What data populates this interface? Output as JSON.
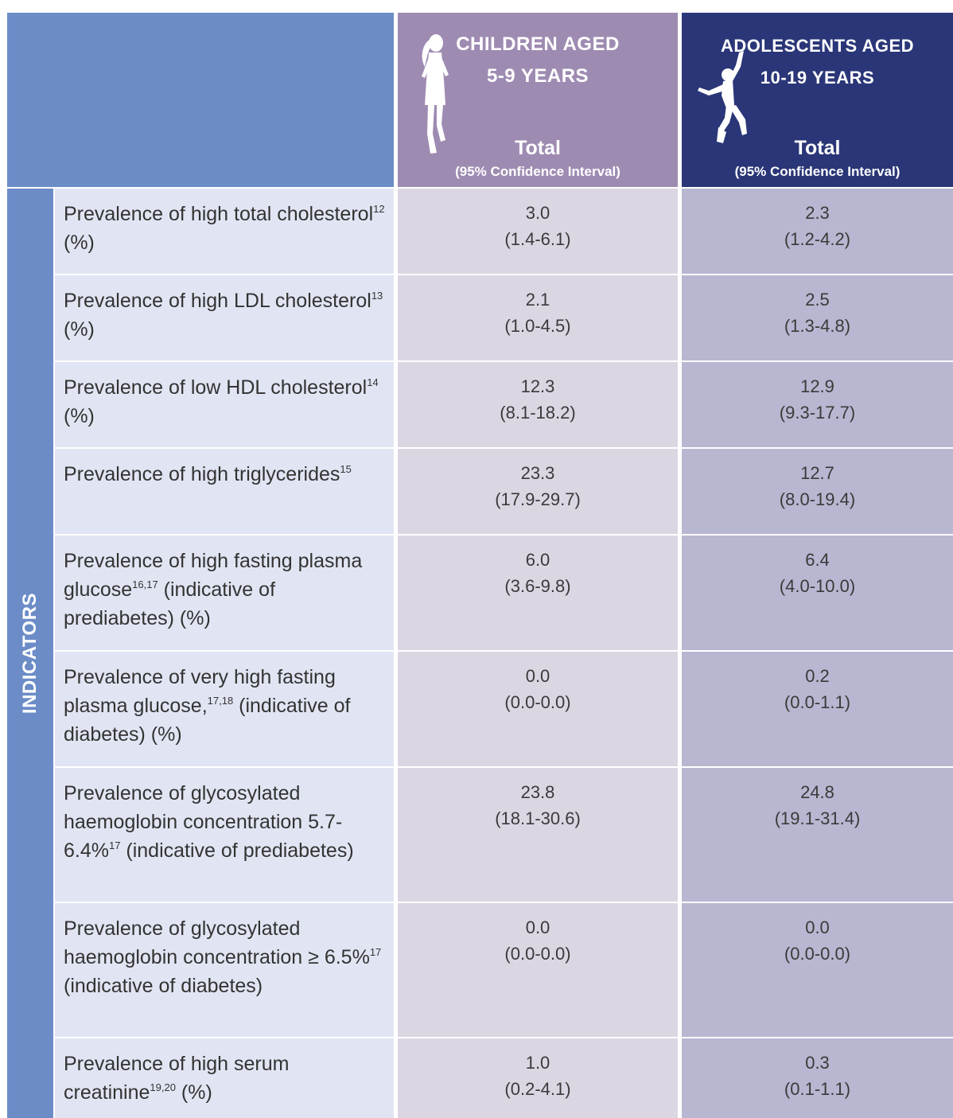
{
  "header": {
    "children": {
      "line1": "CHILDREN AGED",
      "line2": "5-9 YEARS",
      "total": "Total",
      "ci": "(95% Confidence Interval)",
      "icon": "running-girl-icon"
    },
    "adolescents": {
      "line1": "ADOLESCENTS AGED",
      "line2": "10-19 YEARS",
      "total": "Total",
      "ci": "(95% Confidence Interval)",
      "icon": "jumping-boy-icon"
    }
  },
  "side_label": "INDICATORS",
  "colors": {
    "header_blue": "#6b8cc7",
    "header_purple": "#9e8bb2",
    "header_navy": "#2a3677",
    "row_indicator": "#e1e5f3",
    "row_children": "#dcd6e3",
    "row_adolescents": "#b8b7d1"
  },
  "rows": [
    {
      "indicator": [
        {
          "t": "Prevalence of high total cholesterol"
        },
        {
          "sup": "12"
        },
        {
          "t": " (%)"
        }
      ],
      "children": {
        "value": "3.0",
        "ci": "(1.4-6.1)"
      },
      "adolescents": {
        "value": "2.3",
        "ci": "(1.2-4.2)"
      }
    },
    {
      "indicator": [
        {
          "t": "Prevalence of high LDL cholesterol"
        },
        {
          "sup": "13"
        },
        {
          "t": " (%)"
        }
      ],
      "children": {
        "value": "2.1",
        "ci": "(1.0-4.5)"
      },
      "adolescents": {
        "value": "2.5",
        "ci": "(1.3-4.8)"
      }
    },
    {
      "indicator": [
        {
          "t": "Prevalence of low HDL cholesterol"
        },
        {
          "sup": "14"
        },
        {
          "t": " (%)"
        }
      ],
      "children": {
        "value": "12.3",
        "ci": "(8.1-18.2)"
      },
      "adolescents": {
        "value": "12.9",
        "ci": "(9.3-17.7)"
      }
    },
    {
      "indicator": [
        {
          "t": "Prevalence of high triglycerides"
        },
        {
          "sup": "15"
        }
      ],
      "children": {
        "value": "23.3",
        "ci": "(17.9-29.7)"
      },
      "adolescents": {
        "value": "12.7",
        "ci": "(8.0-19.4)"
      }
    },
    {
      "indicator": [
        {
          "t": "Prevalence of high fasting plasma glucose"
        },
        {
          "sup": "16,17"
        },
        {
          "t": " (indicative of prediabetes) (%)"
        }
      ],
      "children": {
        "value": "6.0",
        "ci": "(3.6-9.8)"
      },
      "adolescents": {
        "value": "6.4",
        "ci": "(4.0-10.0)"
      }
    },
    {
      "indicator": [
        {
          "t": "Prevalence of very high fasting plasma glucose,"
        },
        {
          "sup": "17,18"
        },
        {
          "t": " (indicative of diabetes) (%)"
        }
      ],
      "children": {
        "value": "0.0",
        "ci": "(0.0-0.0)"
      },
      "adolescents": {
        "value": "0.2",
        "ci": "(0.0-1.1)"
      }
    },
    {
      "indicator": [
        {
          "t": "Prevalence of glycosylated haemoglobin concentration 5.7-6.4%"
        },
        {
          "sup": "17"
        },
        {
          "t": " (indicative of prediabetes)"
        }
      ],
      "children": {
        "value": "23.8",
        "ci": "(18.1-30.6)"
      },
      "adolescents": {
        "value": "24.8",
        "ci": "(19.1-31.4)"
      }
    },
    {
      "indicator": [
        {
          "t": "Prevalence of glycosylated haemoglobin concentration ≥ 6.5%"
        },
        {
          "sup": "17"
        },
        {
          "t": " (indicative of diabetes)"
        }
      ],
      "children": {
        "value": "0.0",
        "ci": "(0.0-0.0)"
      },
      "adolescents": {
        "value": "0.0",
        "ci": "(0.0-0.0)"
      }
    },
    {
      "indicator": [
        {
          "t": "Prevalence of high serum creatinine"
        },
        {
          "sup": "19,20"
        },
        {
          "t": " (%)"
        }
      ],
      "children": {
        "value": "1.0",
        "ci": "(0.2-4.1)"
      },
      "adolescents": {
        "value": "0.3",
        "ci": "(0.1-1.1)"
      }
    }
  ]
}
